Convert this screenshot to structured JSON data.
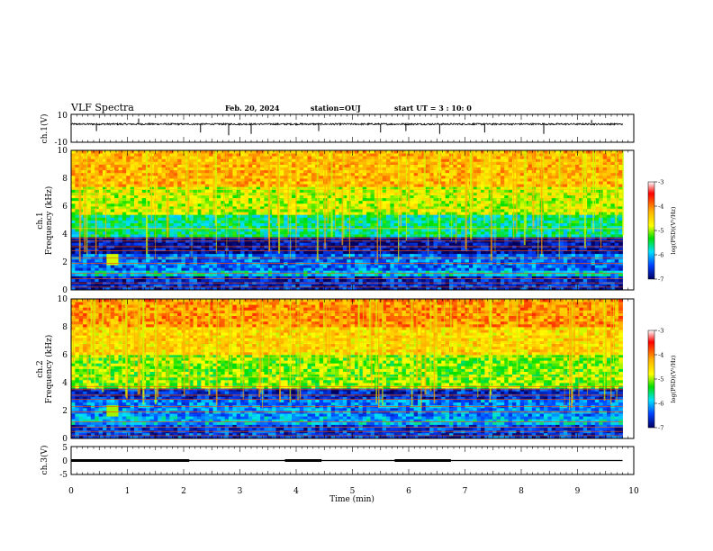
{
  "header": {
    "title": "VLF Spectra",
    "date": "Feb. 20, 2024",
    "station": "station=OUJ",
    "start_ut": "start  UT =   3 : 10: 0"
  },
  "chart_data": [
    {
      "type": "line",
      "name": "ch1-waveform",
      "ylabel": "ch.1(V)",
      "ylim": [
        -10,
        10
      ],
      "y_ticks": [
        "10",
        "-10"
      ],
      "xlim": [
        0,
        10
      ],
      "baseline": 3,
      "noise": 0.6,
      "spikes": [
        {
          "x": 0.45,
          "y": -2
        },
        {
          "x": 1.2,
          "y": 7
        },
        {
          "x": 2.3,
          "y": -3
        },
        {
          "x": 2.8,
          "y": -5
        },
        {
          "x": 3.2,
          "y": -4
        },
        {
          "x": 4.4,
          "y": -2
        },
        {
          "x": 5.5,
          "y": -3
        },
        {
          "x": 5.95,
          "y": -2
        },
        {
          "x": 6.55,
          "y": -4
        },
        {
          "x": 7.35,
          "y": -3
        },
        {
          "x": 8.4,
          "y": -4
        },
        {
          "x": 9.25,
          "y": 6
        }
      ]
    },
    {
      "type": "heatmap",
      "name": "ch1-spectrogram",
      "ylabel": "ch.1\nFrequency (kHz)",
      "ylim": [
        0,
        10
      ],
      "y_ticks": [
        "0",
        "2",
        "4",
        "6",
        "8",
        "10"
      ],
      "xlim": [
        0,
        9.8
      ],
      "colorbar": {
        "label": "log(PSD)(V²/Hz)",
        "range": [
          -7,
          -3
        ],
        "ticks": [
          "-3",
          "-4",
          "-5",
          "-6",
          "-7"
        ]
      },
      "bands": [
        {
          "f0": 0,
          "f1": 0.9,
          "level": -6.6
        },
        {
          "f0": 0.9,
          "f1": 1.4,
          "level": -5.9
        },
        {
          "f0": 1.4,
          "f1": 2.6,
          "level": -6.3
        },
        {
          "f0": 2.6,
          "f1": 3.8,
          "level": -6.8
        },
        {
          "f0": 3.8,
          "f1": 5.5,
          "level": -5.6
        },
        {
          "f0": 5.5,
          "f1": 7.5,
          "level": -4.9
        },
        {
          "f0": 7.5,
          "f1": 10,
          "level": -4.3
        }
      ],
      "spots": [
        {
          "t": 0.75,
          "f": 2.2,
          "level": -4.9
        }
      ]
    },
    {
      "type": "heatmap",
      "name": "ch2-spectrogram",
      "ylabel": "ch.2\nFrequency (kHz)",
      "ylim": [
        0,
        10
      ],
      "y_ticks": [
        "0",
        "2",
        "4",
        "6",
        "8",
        "10"
      ],
      "xlim": [
        0,
        9.8
      ],
      "colorbar": {
        "label": "log(PSD)(V²/Hz)",
        "range": [
          -7,
          -3
        ],
        "ticks": [
          "-3",
          "-4",
          "-5",
          "-6",
          "-7"
        ]
      },
      "bands": [
        {
          "f0": 0,
          "f1": 0.9,
          "level": -6.5
        },
        {
          "f0": 0.9,
          "f1": 1.6,
          "level": -6.0
        },
        {
          "f0": 1.6,
          "f1": 2.8,
          "level": -6.2
        },
        {
          "f0": 2.8,
          "f1": 3.6,
          "level": -6.6
        },
        {
          "f0": 3.6,
          "f1": 6.0,
          "level": -5.1
        },
        {
          "f0": 6.0,
          "f1": 8.0,
          "level": -4.5
        },
        {
          "f0": 8.0,
          "f1": 10,
          "level": -4.1
        }
      ],
      "spots": [
        {
          "t": 0.75,
          "f": 2.0,
          "level": -5.0
        }
      ]
    },
    {
      "type": "line",
      "name": "ch3-signal",
      "ylabel": "ch.3(V)",
      "ylim": [
        -5,
        5
      ],
      "y_ticks": [
        "5",
        "0",
        "-5"
      ],
      "xlim": [
        0,
        10
      ],
      "xlabel": "Time (min)",
      "x_ticks": [
        "0",
        "1",
        "2",
        "3",
        "4",
        "5",
        "6",
        "7",
        "8",
        "9",
        "10"
      ],
      "level": 0,
      "thick_segments": [
        [
          0,
          2.1
        ],
        [
          3.8,
          4.45
        ],
        [
          5.75,
          6.75
        ]
      ],
      "x_end": 9.8
    }
  ]
}
